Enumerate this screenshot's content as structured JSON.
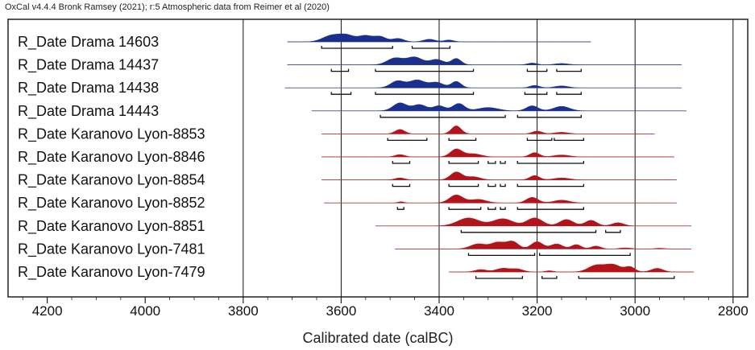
{
  "header": {
    "text": "OxCal v4.4.4 Bronk Ramsey (2021); r:5 Atmospheric data from Reimer et al (2020)"
  },
  "colors": {
    "blue": "#1b2f8c",
    "red": "#b3141b",
    "axis": "#222222",
    "baseline": "#9a9a9a",
    "grid": "#111111"
  },
  "chart_data": {
    "type": "area",
    "xlabel": "Calibrated date (calBC)",
    "xlim": [
      4280,
      2770
    ],
    "x_reversed": true,
    "x_ticks": [
      4200,
      4000,
      3800,
      3600,
      3400,
      3200,
      3000,
      2800
    ],
    "gridlines": [
      3800,
      3600,
      3400,
      3200,
      3000,
      2800
    ],
    "series": [
      {
        "name": "R_Date Drama 14603",
        "color": "blue",
        "range": [
          3710,
          3090
        ],
        "peaks": [
          [
            3620,
            18,
            1
          ],
          [
            3588,
            16,
            1
          ],
          [
            3550,
            14,
            0.97
          ],
          [
            3520,
            12,
            0.82
          ],
          [
            3484,
            12,
            0.55
          ],
          [
            3420,
            12,
            0.42
          ],
          [
            3380,
            10,
            0.3
          ]
        ],
        "hpd": [
          [
            3640,
            3495
          ],
          [
            3455,
            3378
          ]
        ]
      },
      {
        "name": "R_Date Drama 14437",
        "color": "blue",
        "range": [
          3710,
          2905
        ],
        "peaks": [
          [
            3490,
            16,
            0.75
          ],
          [
            3450,
            16,
            0.85
          ],
          [
            3405,
            14,
            0.6
          ],
          [
            3365,
            10,
            0.7
          ],
          [
            3210,
            10,
            0.2
          ],
          [
            3150,
            14,
            0.15
          ]
        ],
        "hpd": [
          [
            3620,
            3585
          ],
          [
            3530,
            3330
          ],
          [
            3220,
            3180
          ],
          [
            3160,
            3110
          ]
        ]
      },
      {
        "name": "R_Date Drama 14438",
        "color": "blue",
        "range": [
          3715,
          2905
        ],
        "peaks": [
          [
            3485,
            14,
            0.7
          ],
          [
            3445,
            16,
            0.8
          ],
          [
            3405,
            14,
            0.55
          ],
          [
            3365,
            10,
            0.65
          ],
          [
            3205,
            10,
            0.25
          ],
          [
            3150,
            14,
            0.2
          ]
        ],
        "hpd": [
          [
            3620,
            3580
          ],
          [
            3530,
            3330
          ],
          [
            3225,
            3180
          ],
          [
            3160,
            3110
          ]
        ]
      },
      {
        "name": "R_Date Drama 14443",
        "color": "blue",
        "range": [
          3660,
          2895
        ],
        "peaks": [
          [
            3480,
            14,
            0.7
          ],
          [
            3440,
            14,
            0.55
          ],
          [
            3400,
            12,
            0.45
          ],
          [
            3360,
            12,
            0.65
          ],
          [
            3300,
            20,
            0.3
          ],
          [
            3210,
            12,
            0.45
          ],
          [
            3150,
            16,
            0.4
          ]
        ],
        "hpd": [
          [
            3520,
            3265
          ],
          [
            3240,
            3110
          ]
        ]
      },
      {
        "name": "R_Date Karanovo Lyon-8853",
        "color": "red",
        "range": [
          3640,
          2960
        ],
        "peaks": [
          [
            3480,
            10,
            0.55
          ],
          [
            3365,
            10,
            1
          ],
          [
            3200,
            10,
            0.35
          ],
          [
            3150,
            14,
            0.2
          ]
        ],
        "hpd": [
          [
            3505,
            3425
          ],
          [
            3380,
            3325
          ],
          [
            3220,
            3170
          ],
          [
            3165,
            3105
          ]
        ]
      },
      {
        "name": "R_Date Karanovo Lyon-8846",
        "color": "red",
        "range": [
          3640,
          2920
        ],
        "peaks": [
          [
            3480,
            10,
            0.3
          ],
          [
            3365,
            12,
            1
          ],
          [
            3330,
            16,
            0.4
          ],
          [
            3205,
            10,
            0.55
          ],
          [
            3150,
            16,
            0.25
          ]
        ],
        "hpd": [
          [
            3495,
            3460
          ],
          [
            3380,
            3320
          ],
          [
            3300,
            3285
          ],
          [
            3275,
            3265
          ],
          [
            3240,
            3105
          ]
        ]
      },
      {
        "name": "R_Date Karanovo Lyon-8854",
        "color": "red",
        "range": [
          3640,
          2915
        ],
        "peaks": [
          [
            3480,
            10,
            0.25
          ],
          [
            3365,
            12,
            1
          ],
          [
            3330,
            14,
            0.4
          ],
          [
            3205,
            10,
            0.55
          ],
          [
            3150,
            16,
            0.25
          ]
        ],
        "hpd": [
          [
            3495,
            3460
          ],
          [
            3380,
            3320
          ],
          [
            3300,
            3285
          ],
          [
            3275,
            3265
          ],
          [
            3240,
            3105
          ]
        ]
      },
      {
        "name": "R_Date Karanovo Lyon-8852",
        "color": "red",
        "range": [
          3635,
          2915
        ],
        "peaks": [
          [
            3478,
            6,
            0.15
          ],
          [
            3365,
            14,
            1
          ],
          [
            3320,
            16,
            0.45
          ],
          [
            3210,
            12,
            0.7
          ],
          [
            3150,
            16,
            0.35
          ]
        ],
        "hpd": [
          [
            3485,
            3472
          ],
          [
            3380,
            3315
          ],
          [
            3300,
            3285
          ],
          [
            3275,
            3265
          ],
          [
            3240,
            3105
          ]
        ]
      },
      {
        "name": "R_Date Karanovo Lyon-8851",
        "color": "red",
        "range": [
          3530,
          2885
        ],
        "peaks": [
          [
            3340,
            22,
            1
          ],
          [
            3270,
            20,
            0.9
          ],
          [
            3205,
            16,
            1
          ],
          [
            3140,
            14,
            0.8
          ],
          [
            3090,
            12,
            0.7
          ],
          [
            3035,
            12,
            0.4
          ]
        ],
        "hpd": [
          [
            3355,
            3080
          ],
          [
            3060,
            3030
          ]
        ]
      },
      {
        "name": "R_Date Karanovo Lyon-7481",
        "color": "red",
        "range": [
          3490,
          2885
        ],
        "peaks": [
          [
            3320,
            16,
            0.7
          ],
          [
            3280,
            14,
            0.9
          ],
          [
            3250,
            12,
            1
          ],
          [
            3200,
            12,
            1
          ],
          [
            3160,
            12,
            0.7
          ],
          [
            3120,
            10,
            0.6
          ],
          [
            3080,
            10,
            0.4
          ],
          [
            3020,
            12,
            0.15
          ],
          [
            2950,
            10,
            0.1
          ]
        ],
        "hpd": [
          [
            3340,
            3205
          ],
          [
            3195,
            3010
          ]
        ]
      },
      {
        "name": "R_Date Karanovo Lyon-7479",
        "color": "red",
        "range": [
          3380,
          2880
        ],
        "peaks": [
          [
            3315,
            12,
            0.3
          ],
          [
            3270,
            14,
            0.45
          ],
          [
            3240,
            12,
            0.35
          ],
          [
            3175,
            8,
            0.15
          ],
          [
            3080,
            16,
            0.8
          ],
          [
            3045,
            16,
            0.9
          ],
          [
            3010,
            10,
            0.6
          ],
          [
            2955,
            12,
            0.45
          ]
        ],
        "hpd": [
          [
            3325,
            3230
          ],
          [
            3190,
            3160
          ],
          [
            3115,
            2920
          ]
        ]
      }
    ]
  }
}
